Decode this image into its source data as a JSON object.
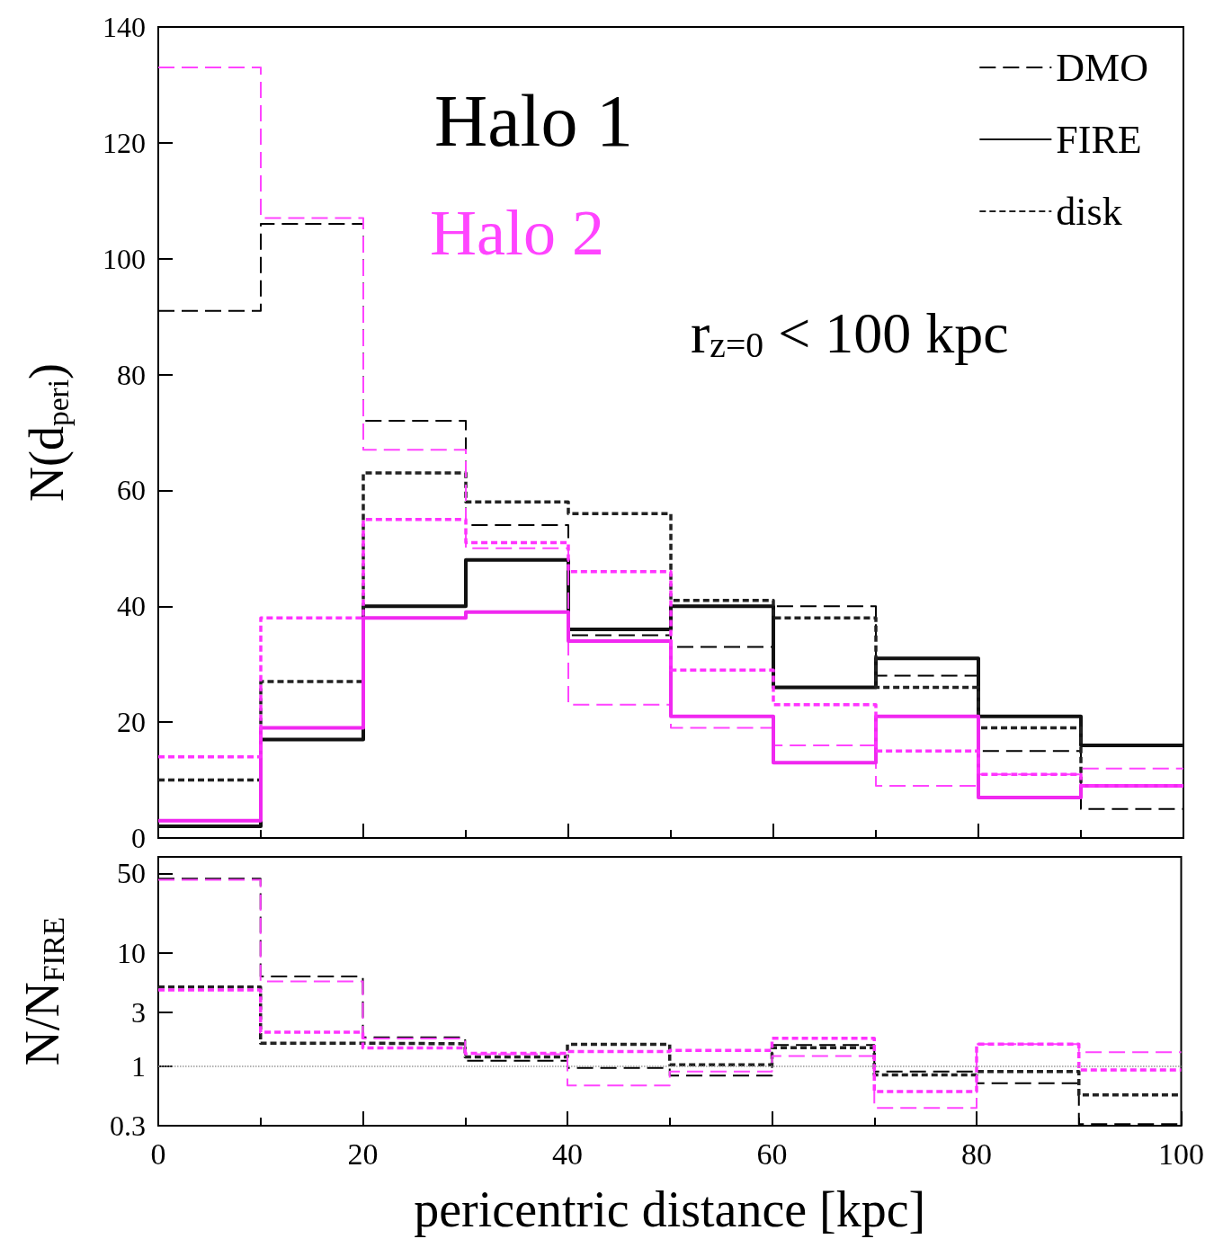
{
  "chart_data": [
    {
      "type": "histogram",
      "ylabel": "N(d$_{peri}$)",
      "bins": [
        0,
        10,
        20,
        30,
        40,
        50,
        60,
        70,
        80,
        90,
        100
      ],
      "xlim": [
        0,
        100
      ],
      "xticks": [
        0,
        20,
        40,
        60,
        80,
        100
      ],
      "ylim": [
        0,
        140
      ],
      "yticks": [
        0,
        20,
        40,
        60,
        80,
        100,
        120,
        140
      ],
      "tick_labels": "y",
      "grid": false,
      "legend": "top right",
      "annotations": [
        "Halo 1",
        "Halo 2",
        "r$_{z=0}$ < 100 kpc"
      ],
      "series": [
        {
          "name": "DMO",
          "color": "#000000",
          "line_style": "dashed",
          "values": [
            91,
            106,
            72,
            54,
            35,
            33,
            40,
            28,
            15,
            5
          ]
        },
        {
          "name": "FIRE",
          "color": "#111111",
          "line_style": "solid",
          "values": [
            2,
            17,
            40,
            48,
            36,
            40,
            26,
            31,
            21,
            16
          ]
        },
        {
          "name": "disk",
          "color": "#222222",
          "line_style": "dotted",
          "values": [
            10,
            27,
            63,
            58,
            56,
            41,
            38,
            26,
            19,
            9
          ]
        },
        {
          "color": "#ff44ff",
          "line_style": "dashed",
          "values": [
            133,
            107,
            67,
            50,
            23,
            19,
            16,
            9,
            11,
            12
          ]
        },
        {
          "color": "#f028f0",
          "line_style": "solid",
          "values": [
            3,
            19,
            38,
            39,
            34,
            21,
            13,
            21,
            7,
            9
          ]
        },
        {
          "color": "#ff33ff",
          "line_style": "dotted",
          "values": [
            14,
            38,
            55,
            51,
            46,
            29,
            23,
            15,
            11,
            9
          ]
        }
      ]
    },
    {
      "type": "histogram",
      "xlabel": "pericentric distance [kpc]",
      "ylabel": "N/N$_{FIRE}$",
      "bins": [
        0,
        10,
        20,
        30,
        40,
        50,
        60,
        70,
        80,
        90,
        100
      ],
      "xlim": [
        0,
        100
      ],
      "xticks": [
        0,
        20,
        40,
        60,
        80,
        100
      ],
      "ylim": [
        0.3,
        70
      ],
      "yticks": [
        0.3,
        1,
        3,
        10,
        50
      ],
      "log": true,
      "grid": false,
      "legend": false,
      "ref_lines": [
        {
          "axis": "y",
          "value": 1,
          "color": "#999999",
          "line_style": "dotted"
        }
      ],
      "series": [
        {
          "color": "#000000",
          "line_style": "dashed",
          "values": [
            45,
            6.2,
            1.8,
            1.12,
            0.97,
            0.83,
            1.54,
            0.9,
            0.71,
            0.31
          ]
        },
        {
          "color": "#222222",
          "line_style": "dotted",
          "values": [
            5,
            1.6,
            1.58,
            1.21,
            1.56,
            1.03,
            1.46,
            0.84,
            0.9,
            0.56
          ]
        },
        {
          "color": "#ff44ff",
          "line_style": "dashed",
          "values": [
            44,
            5.6,
            1.76,
            1.28,
            0.68,
            0.9,
            1.23,
            0.43,
            1.57,
            1.33
          ]
        },
        {
          "color": "#ff33ff",
          "line_style": "dotted",
          "values": [
            4.7,
            2.0,
            1.45,
            1.3,
            1.35,
            1.38,
            1.77,
            0.6,
            1.57,
            0.93
          ]
        }
      ]
    }
  ]
}
